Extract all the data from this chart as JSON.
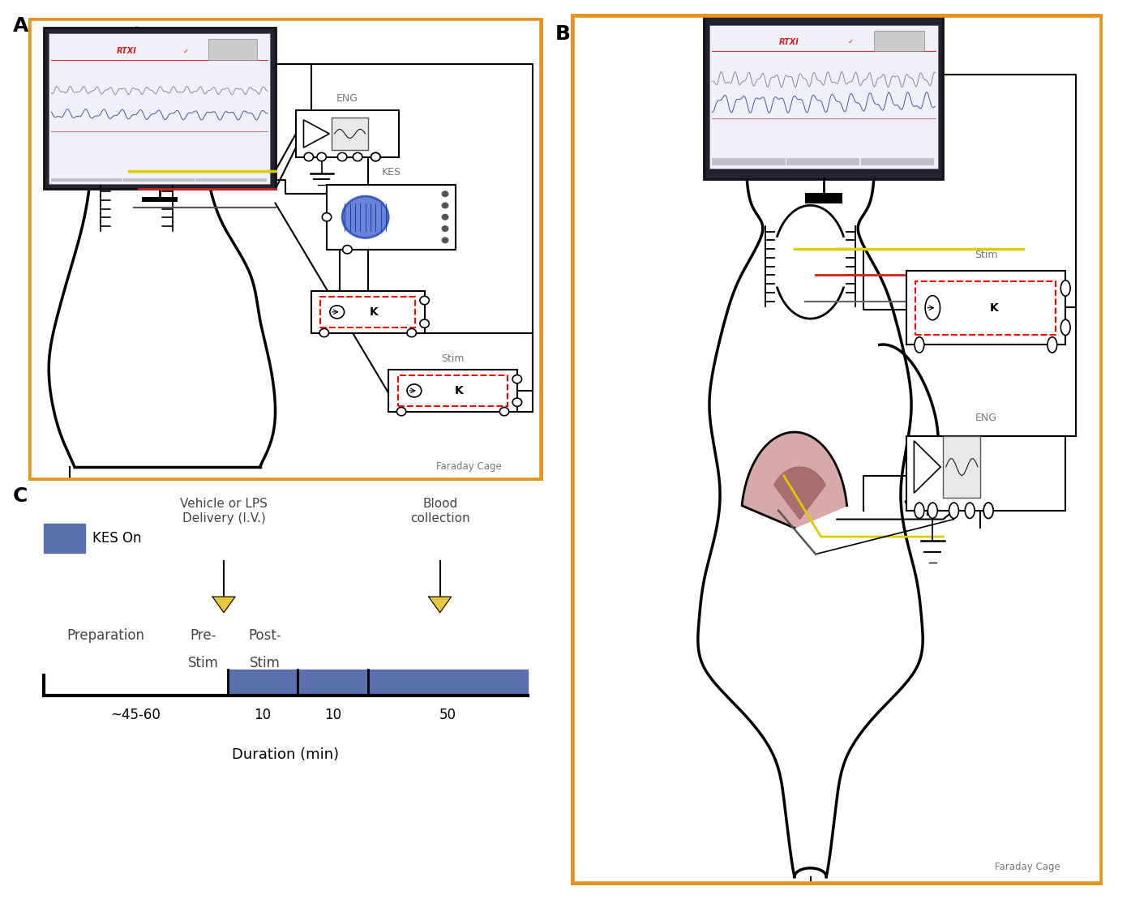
{
  "panel_a_label": "A",
  "panel_b_label": "B",
  "panel_c_label": "C",
  "orange_border_color": "#E8931D",
  "background_color": "#ffffff",
  "kes_on_color": "#5B6EAE",
  "kes_on_label": "KES On",
  "faraday_cage_label": "Faraday Cage",
  "eng_label": "ENG",
  "kes_label": "KES",
  "stim_label": "Stim",
  "rtxi_color": "#CC2222",
  "gray_text": "#777777",
  "dark_gray": "#444444",
  "yellow_arrow": "#E8C840",
  "yellow_wire": "#DDCC00",
  "red_wire": "#CC2222",
  "spleen_fill": "#D4A0A0",
  "spleen_dark": "#A06060",
  "duration_label": "Duration (min)",
  "duration_45_60": "~45-60",
  "duration_10a": "10",
  "duration_10b": "10",
  "duration_50": "50"
}
